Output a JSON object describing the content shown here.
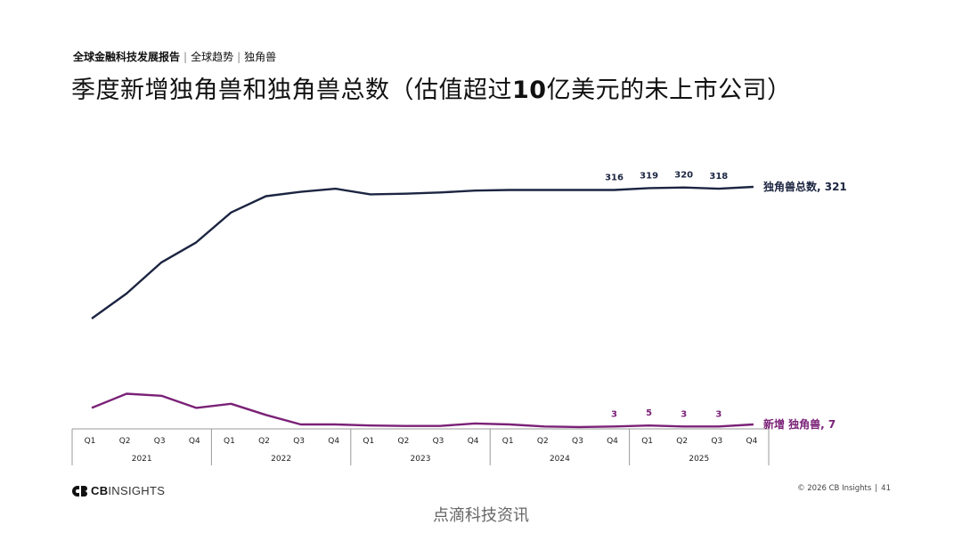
{
  "header": {
    "breadcrumb_main": "全球金融科技发展报告",
    "breadcrumb_sub1": "全球趋势",
    "breadcrumb_sub2": "独角兽",
    "title_pre": "季度新增独角兽和独角兽总数（估值超过",
    "title_num": "10",
    "title_post": "亿美元的未上市公司）"
  },
  "footer": {
    "logo_text": "INSIGHTS",
    "logo_brand": "CB",
    "copyright": "© 2026 CB Insights",
    "page_number": "41",
    "watermark": "点滴科技资讯"
  },
  "colors": {
    "total_line": "#1c2541",
    "new_line": "#7a2177",
    "axis": "#999999"
  },
  "chart_data": {
    "type": "line",
    "quarters": [
      "Q1",
      "Q2",
      "Q3",
      "Q4",
      "Q1",
      "Q2",
      "Q3",
      "Q4",
      "Q1",
      "Q2",
      "Q3",
      "Q4",
      "Q1",
      "Q2",
      "Q3",
      "Q4",
      "Q1",
      "Q2",
      "Q3",
      "Q4"
    ],
    "years": [
      "2021",
      "2022",
      "2023",
      "2024",
      "2025"
    ],
    "series": [
      {
        "name": "独角兽总数",
        "end_label": "独角兽总数, 321",
        "values": [
          110,
          150,
          200,
          232,
          280,
          306,
          313,
          318,
          309,
          310,
          312,
          315,
          316,
          316,
          316,
          316,
          319,
          320,
          318,
          321
        ],
        "shown_labels": {
          "15": "316",
          "16": "319",
          "17": "320",
          "18": "318"
        }
      },
      {
        "name": "新增 独角兽",
        "end_label": "新增 独角兽, 7",
        "values": [
          40,
          68,
          64,
          40,
          48,
          26,
          7,
          7,
          5,
          4,
          4,
          9,
          7,
          3,
          2,
          3,
          5,
          3,
          3,
          7
        ],
        "shown_labels": {
          "15": "3",
          "16": "5",
          "17": "3",
          "18": "3"
        }
      }
    ]
  }
}
